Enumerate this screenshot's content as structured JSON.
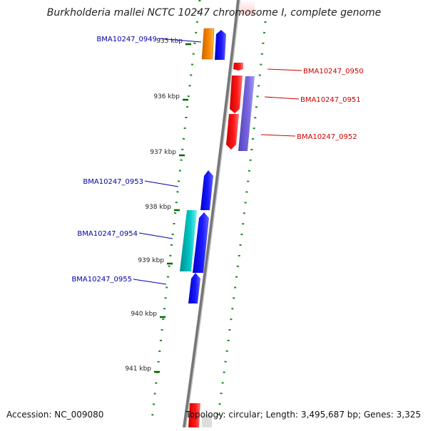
{
  "title": "Burkholderia mallei NCTC 10247 chromosome I, complete genome",
  "accession": "Accession: NC_009080",
  "summary": "Topology: circular; Length: 3,495,687 bp; Genes: 3,325",
  "colors": {
    "forward_gene": "#0000ee",
    "reverse_gene": "#ee0000",
    "orange_gene": "#ee8800",
    "cyan_gene": "#00bbbb",
    "violet_gene": "#7766dd",
    "tick": "#006600",
    "backbone": "#888888",
    "label_forward": "#0000aa",
    "label_reverse": "#cc0000"
  },
  "position_ticks": [
    "935 kbp",
    "936 kbp",
    "937 kbp",
    "938 kbp",
    "939 kbp",
    "940 kbp",
    "941 kbp"
  ],
  "genes": [
    {
      "name": "BMA10247_0949",
      "strand": "forward"
    },
    {
      "name": "BMA10247_0950",
      "strand": "reverse"
    },
    {
      "name": "BMA10247_0951",
      "strand": "reverse"
    },
    {
      "name": "BMA10247_0952",
      "strand": "reverse"
    },
    {
      "name": "BMA10247_0953",
      "strand": "forward"
    },
    {
      "name": "BMA10247_0954",
      "strand": "forward"
    },
    {
      "name": "BMA10247_0955",
      "strand": "forward"
    }
  ]
}
